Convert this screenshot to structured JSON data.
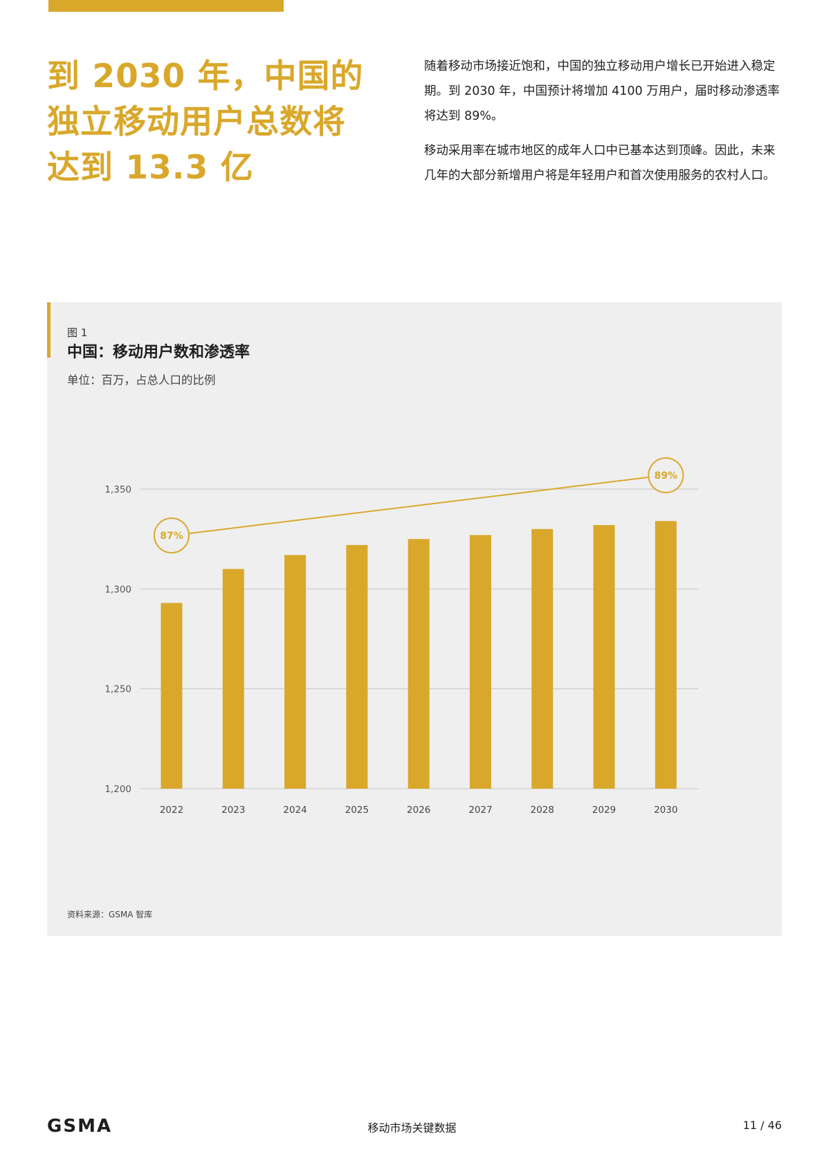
{
  "headline": {
    "lines": [
      "到 2030 年，中国的",
      "独立移动用户总数将",
      "达到 13.3 亿"
    ]
  },
  "intro": {
    "p1": "随着移动市场接近饱和，中国的独立移动用户增长已开始进入稳定期。到 2030 年，中国预计将增加 4100 万用户，届时移动渗透率将达到 89%。",
    "p2": "移动采用率在城市地区的成年人口中已基本达到顶峰。因此，未来几年的大部分新增用户将是年轻用户和首次使用服务的农村人口。"
  },
  "figure": {
    "label": "图 1",
    "title": "中国：移动用户数和渗透率",
    "units": "单位：百万，占总人口的比例",
    "source": "资料来源：GSMA 智库"
  },
  "chart_data": {
    "type": "bar",
    "categories": [
      "2022",
      "2023",
      "2024",
      "2025",
      "2026",
      "2027",
      "2028",
      "2029",
      "2030"
    ],
    "values": [
      1293,
      1310,
      1317,
      1322,
      1325,
      1327,
      1330,
      1332,
      1334
    ],
    "yticks": [
      1200,
      1250,
      1300,
      1350
    ],
    "ytick_labels": [
      "1,200",
      "1,250",
      "1,300",
      "1,350"
    ],
    "ylim": [
      1200,
      1350
    ],
    "bar_color": "#d9a82b",
    "line": {
      "start_label": "87%",
      "end_label": "89%",
      "start_value": 87,
      "end_value": 89
    },
    "grid": true
  },
  "footer": {
    "logo": "GSMA",
    "center": "移动市场关键数据",
    "page": "11 / 46"
  }
}
